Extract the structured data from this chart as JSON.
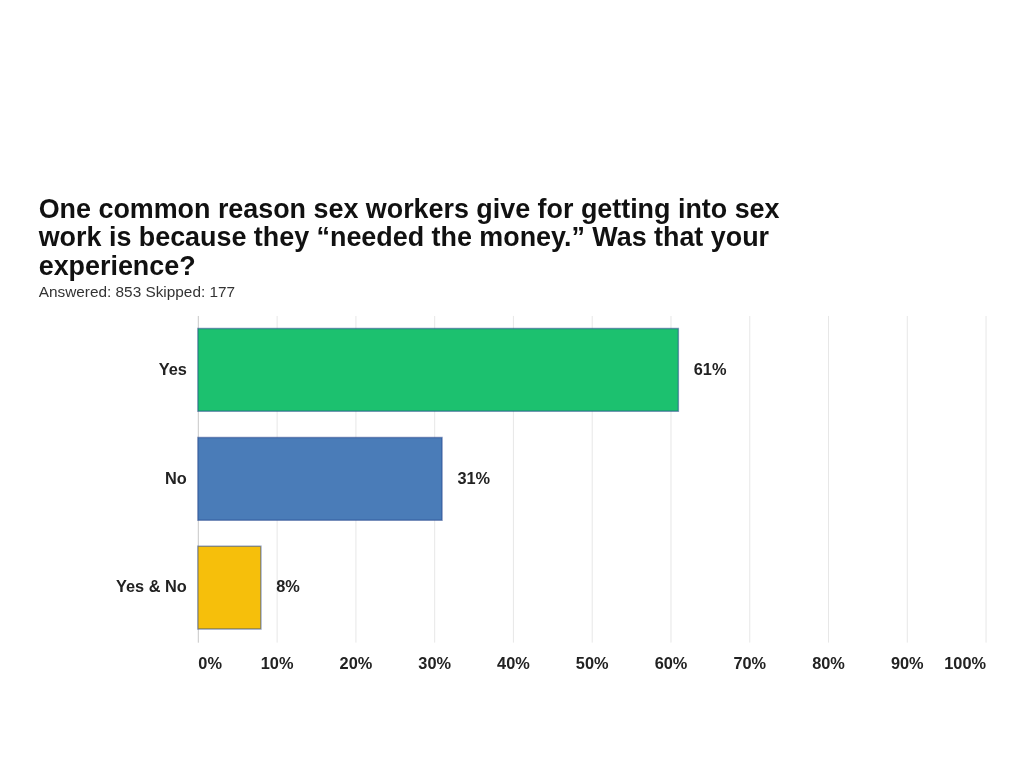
{
  "chart_data": {
    "type": "bar",
    "orientation": "horizontal",
    "title": "One common reason sex workers give for getting into sex work is because they “needed the money.” Was that your experience?",
    "subtitle": "Answered: 853    Skipped: 177",
    "categories": [
      "Yes",
      "No",
      "Yes & No"
    ],
    "values": [
      61,
      31,
      8
    ],
    "colors": [
      "#1cc16f",
      "#4a7cb8",
      "#f6bf0b"
    ],
    "value_labels": [
      "61%",
      "31%",
      "8%"
    ],
    "xlim": [
      0,
      100
    ],
    "xticks": [
      {
        "value": 0,
        "label": "0%"
      },
      {
        "value": 10,
        "label": "10%"
      },
      {
        "value": 20,
        "label": "20%"
      },
      {
        "value": 30,
        "label": "30%"
      },
      {
        "value": 40,
        "label": "40%"
      },
      {
        "value": 50,
        "label": "50%"
      },
      {
        "value": 60,
        "label": "60%"
      },
      {
        "value": 70,
        "label": "70%"
      },
      {
        "value": 80,
        "label": "80%"
      },
      {
        "value": 90,
        "label": "90%"
      },
      {
        "value": 100,
        "label": "100%"
      }
    ],
    "grid": "x"
  }
}
